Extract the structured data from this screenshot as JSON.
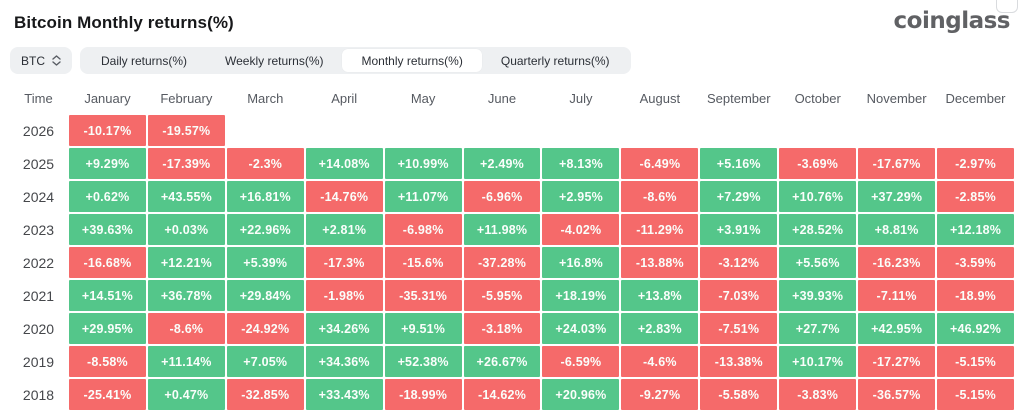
{
  "header": {
    "title": "Bitcoin Monthly returns(%)",
    "logo": "coinglass"
  },
  "toolbar": {
    "symbol": "BTC",
    "tabs": [
      {
        "label": "Daily returns(%)",
        "active": false
      },
      {
        "label": "Weekly returns(%)",
        "active": false
      },
      {
        "label": "Monthly returns(%)",
        "active": true
      },
      {
        "label": "Quarterly returns(%)",
        "active": false
      }
    ]
  },
  "colors": {
    "positive": "#54c68a",
    "negative": "#f56a6a"
  },
  "chart_data": {
    "type": "table",
    "title": "Bitcoin Monthly returns(%)",
    "columns": [
      "Time",
      "January",
      "February",
      "March",
      "April",
      "May",
      "June",
      "July",
      "August",
      "September",
      "October",
      "November",
      "December"
    ],
    "rows": [
      {
        "year": "2026",
        "values": [
          "-10.17%",
          "-19.57%",
          "",
          "",
          "",
          "",
          "",
          "",
          "",
          "",
          "",
          ""
        ]
      },
      {
        "year": "2025",
        "values": [
          "+9.29%",
          "-17.39%",
          "-2.3%",
          "+14.08%",
          "+10.99%",
          "+2.49%",
          "+8.13%",
          "-6.49%",
          "+5.16%",
          "-3.69%",
          "-17.67%",
          "-2.97%"
        ]
      },
      {
        "year": "2024",
        "values": [
          "+0.62%",
          "+43.55%",
          "+16.81%",
          "-14.76%",
          "+11.07%",
          "-6.96%",
          "+2.95%",
          "-8.6%",
          "+7.29%",
          "+10.76%",
          "+37.29%",
          "-2.85%"
        ]
      },
      {
        "year": "2023",
        "values": [
          "+39.63%",
          "+0.03%",
          "+22.96%",
          "+2.81%",
          "-6.98%",
          "+11.98%",
          "-4.02%",
          "-11.29%",
          "+3.91%",
          "+28.52%",
          "+8.81%",
          "+12.18%"
        ]
      },
      {
        "year": "2022",
        "values": [
          "-16.68%",
          "+12.21%",
          "+5.39%",
          "-17.3%",
          "-15.6%",
          "-37.28%",
          "+16.8%",
          "-13.88%",
          "-3.12%",
          "+5.56%",
          "-16.23%",
          "-3.59%"
        ]
      },
      {
        "year": "2021",
        "values": [
          "+14.51%",
          "+36.78%",
          "+29.84%",
          "-1.98%",
          "-35.31%",
          "-5.95%",
          "+18.19%",
          "+13.8%",
          "-7.03%",
          "+39.93%",
          "-7.11%",
          "-18.9%"
        ]
      },
      {
        "year": "2020",
        "values": [
          "+29.95%",
          "-8.6%",
          "-24.92%",
          "+34.26%",
          "+9.51%",
          "-3.18%",
          "+24.03%",
          "+2.83%",
          "-7.51%",
          "+27.7%",
          "+42.95%",
          "+46.92%"
        ]
      },
      {
        "year": "2019",
        "values": [
          "-8.58%",
          "+11.14%",
          "+7.05%",
          "+34.36%",
          "+52.38%",
          "+26.67%",
          "-6.59%",
          "-4.6%",
          "-13.38%",
          "+10.17%",
          "-17.27%",
          "-5.15%"
        ]
      },
      {
        "year": "2018",
        "values": [
          "-25.41%",
          "+0.47%",
          "-32.85%",
          "+33.43%",
          "-18.99%",
          "-14.62%",
          "+20.96%",
          "-9.27%",
          "-5.58%",
          "-3.83%",
          "-36.57%",
          "-5.15%"
        ]
      }
    ]
  }
}
